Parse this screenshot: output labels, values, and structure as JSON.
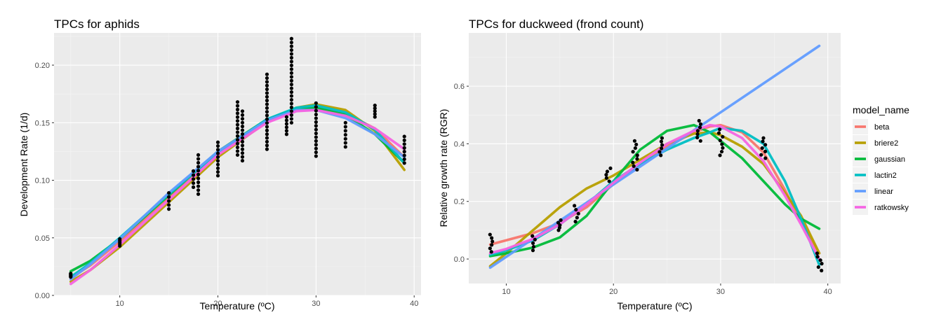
{
  "chart_data": [
    {
      "type": "scatter",
      "title": "TPCs for aphids",
      "xlabel": "Temperature (ºC)",
      "ylabel": "Development Rate (1/d)",
      "xlim": [
        3.3,
        40.7
      ],
      "ylim": [
        -0.0,
        0.228
      ],
      "xticks": [
        10,
        20,
        30,
        40
      ],
      "xtick_labels": [
        "10",
        "20",
        "30",
        "40"
      ],
      "yticks": [
        0.0,
        0.05,
        0.1,
        0.15,
        0.2
      ],
      "ytick_labels": [
        "0.00",
        "0.05",
        "0.10",
        "0.15",
        "0.20"
      ],
      "grid": true,
      "points": [
        {
          "x": 5,
          "y": [
            0.016,
            0.019
          ]
        },
        {
          "x": 10,
          "y": [
            0.043,
            0.049
          ]
        },
        {
          "x": 15,
          "y": [
            0.075,
            0.089
          ]
        },
        {
          "x": 17.5,
          "y": [
            0.094,
            0.108
          ]
        },
        {
          "x": 18,
          "y": [
            0.088,
            0.122
          ]
        },
        {
          "x": 20,
          "y": [
            0.104,
            0.133
          ]
        },
        {
          "x": 22,
          "y": [
            0.122,
            0.168
          ]
        },
        {
          "x": 22.5,
          "y": [
            0.117,
            0.16
          ]
        },
        {
          "x": 25,
          "y": [
            0.127,
            0.192
          ]
        },
        {
          "x": 27,
          "y": [
            0.14,
            0.155
          ]
        },
        {
          "x": 27.5,
          "y": [
            0.15,
            0.223
          ]
        },
        {
          "x": 30,
          "y": [
            0.121,
            0.167
          ]
        },
        {
          "x": 33,
          "y": [
            0.129,
            0.15
          ]
        },
        {
          "x": 36,
          "y": [
            0.155,
            0.165
          ]
        },
        {
          "x": 39,
          "y": [
            0.115,
            0.138
          ]
        }
      ],
      "series": [
        {
          "model": "beta",
          "x": [
            5,
            7,
            10,
            15,
            20,
            25,
            28,
            30,
            33,
            36,
            39
          ],
          "y": [
            0.015,
            0.026,
            0.047,
            0.085,
            0.122,
            0.151,
            0.161,
            0.163,
            0.158,
            0.145,
            0.12
          ]
        },
        {
          "model": "briere2",
          "x": [
            5,
            7,
            10,
            15,
            20,
            25,
            28,
            30,
            33,
            36,
            39
          ],
          "y": [
            0.012,
            0.022,
            0.042,
            0.081,
            0.12,
            0.151,
            0.163,
            0.166,
            0.161,
            0.143,
            0.109
          ]
        },
        {
          "model": "gaussian",
          "x": [
            5,
            7,
            10,
            15,
            20,
            25,
            28,
            30,
            33,
            36,
            39
          ],
          "y": [
            0.021,
            0.03,
            0.049,
            0.087,
            0.125,
            0.153,
            0.162,
            0.163,
            0.157,
            0.14,
            0.115
          ]
        },
        {
          "model": "lactin2",
          "x": [
            5,
            7,
            10,
            15,
            20,
            25,
            28,
            30,
            33,
            36,
            39
          ],
          "y": [
            0.016,
            0.028,
            0.05,
            0.088,
            0.124,
            0.153,
            0.163,
            0.165,
            0.159,
            0.144,
            0.115
          ]
        },
        {
          "model": "linear",
          "x": [
            5,
            7,
            10,
            15,
            20,
            25,
            28,
            30,
            33,
            36,
            39
          ],
          "y": [
            0.014,
            0.027,
            0.049,
            0.089,
            0.125,
            0.152,
            0.161,
            0.161,
            0.154,
            0.14,
            0.12
          ]
        },
        {
          "model": "ratkowsky",
          "x": [
            5,
            7,
            10,
            15,
            20,
            25,
            28,
            30,
            33,
            36,
            39
          ],
          "y": [
            0.01,
            0.022,
            0.044,
            0.083,
            0.122,
            0.15,
            0.16,
            0.161,
            0.156,
            0.145,
            0.127
          ]
        }
      ]
    },
    {
      "type": "scatter",
      "title": "TPCs for duckweed (frond count)",
      "xlabel": "Temperature (ºC)",
      "ylabel": "Relative growth rate (RGR)",
      "xlim": [
        6.5,
        41.2
      ],
      "ylim": [
        -0.085,
        0.785
      ],
      "xticks": [
        10,
        20,
        30,
        40
      ],
      "xtick_labels": [
        "10",
        "20",
        "30",
        "40"
      ],
      "yticks": [
        0.0,
        0.2,
        0.4,
        0.6
      ],
      "ytick_labels": [
        "0.0",
        "0.2",
        "0.4",
        "0.6"
      ],
      "grid": true,
      "points": [
        {
          "x": 8.5,
          "y": [
            0.025,
            0.085
          ]
        },
        {
          "x": 12.5,
          "y": [
            0.03,
            0.08
          ]
        },
        {
          "x": 15,
          "y": [
            0.1,
            0.135
          ]
        },
        {
          "x": 16.5,
          "y": [
            0.13,
            0.185
          ]
        },
        {
          "x": 19.5,
          "y": [
            0.27,
            0.315
          ]
        },
        {
          "x": 22,
          "y": [
            0.31,
            0.41
          ]
        },
        {
          "x": 24.5,
          "y": [
            0.36,
            0.42
          ]
        },
        {
          "x": 28,
          "y": [
            0.41,
            0.48
          ]
        },
        {
          "x": 30,
          "y": [
            0.36,
            0.45
          ]
        },
        {
          "x": 34,
          "y": [
            0.35,
            0.42
          ]
        },
        {
          "x": 39.2,
          "y": [
            -0.04,
            0.02
          ]
        }
      ],
      "series": [
        {
          "model": "beta",
          "x": [
            8.5,
            10,
            12.5,
            15,
            17.5,
            20,
            22.5,
            25,
            27.5,
            29,
            30,
            32,
            34,
            36,
            37.5,
            39.2
          ],
          "y": [
            0.05,
            0.065,
            0.09,
            0.125,
            0.18,
            0.26,
            0.33,
            0.39,
            0.44,
            0.46,
            0.465,
            0.44,
            0.37,
            0.24,
            0.13,
            0.02
          ]
        },
        {
          "model": "briere2",
          "x": [
            8.5,
            10,
            12.5,
            15,
            17.5,
            20,
            22.5,
            25,
            27.5,
            29,
            30,
            32,
            34,
            36,
            37.5,
            39.2
          ],
          "y": [
            -0.025,
            0.02,
            0.1,
            0.18,
            0.245,
            0.29,
            0.345,
            0.4,
            0.435,
            0.44,
            0.43,
            0.39,
            0.33,
            0.23,
            0.15,
            0.02
          ]
        },
        {
          "model": "gaussian",
          "x": [
            8.5,
            10,
            12.5,
            15,
            17.5,
            20,
            22.5,
            25,
            27.5,
            29,
            30,
            32,
            34,
            36,
            37.5,
            39.2
          ],
          "y": [
            0.01,
            0.02,
            0.04,
            0.075,
            0.15,
            0.27,
            0.38,
            0.445,
            0.465,
            0.44,
            0.41,
            0.35,
            0.27,
            0.19,
            0.14,
            0.105
          ]
        },
        {
          "model": "lactin2",
          "x": [
            8.5,
            10,
            12.5,
            15,
            17.5,
            20,
            22.5,
            25,
            27.5,
            29,
            30,
            32,
            34,
            36,
            37.5,
            39.2
          ],
          "y": [
            0.015,
            0.03,
            0.065,
            0.12,
            0.19,
            0.27,
            0.33,
            0.38,
            0.42,
            0.44,
            0.455,
            0.445,
            0.4,
            0.27,
            0.14,
            -0.02
          ]
        },
        {
          "model": "linear",
          "x": [
            8.5,
            39.2
          ],
          "y": [
            -0.03,
            0.74
          ]
        },
        {
          "model": "ratkowsky",
          "x": [
            8.5,
            10,
            12.5,
            15,
            17.5,
            20,
            22.5,
            25,
            27.5,
            29,
            30,
            32,
            34,
            36,
            37.5,
            39.2
          ],
          "y": [
            0.02,
            0.035,
            0.07,
            0.12,
            0.19,
            0.265,
            0.335,
            0.4,
            0.445,
            0.465,
            0.46,
            0.42,
            0.34,
            0.22,
            0.12,
            0.0
          ]
        }
      ]
    }
  ],
  "legend": {
    "title": "model_name",
    "placement": "right",
    "entries": [
      {
        "label": "beta",
        "color": "#F8766D"
      },
      {
        "label": "briere2",
        "color": "#B79F00"
      },
      {
        "label": "gaussian",
        "color": "#00BA38"
      },
      {
        "label": "lactin2",
        "color": "#00BFC4"
      },
      {
        "label": "linear",
        "color": "#619CFF"
      },
      {
        "label": "ratkowsky",
        "color": "#F564E3"
      }
    ]
  },
  "colors": {
    "panel_background": "#EBEBEB",
    "grid_major": "#FFFFFF",
    "grid_minor": "#F5F5F5",
    "points": "#000000"
  }
}
